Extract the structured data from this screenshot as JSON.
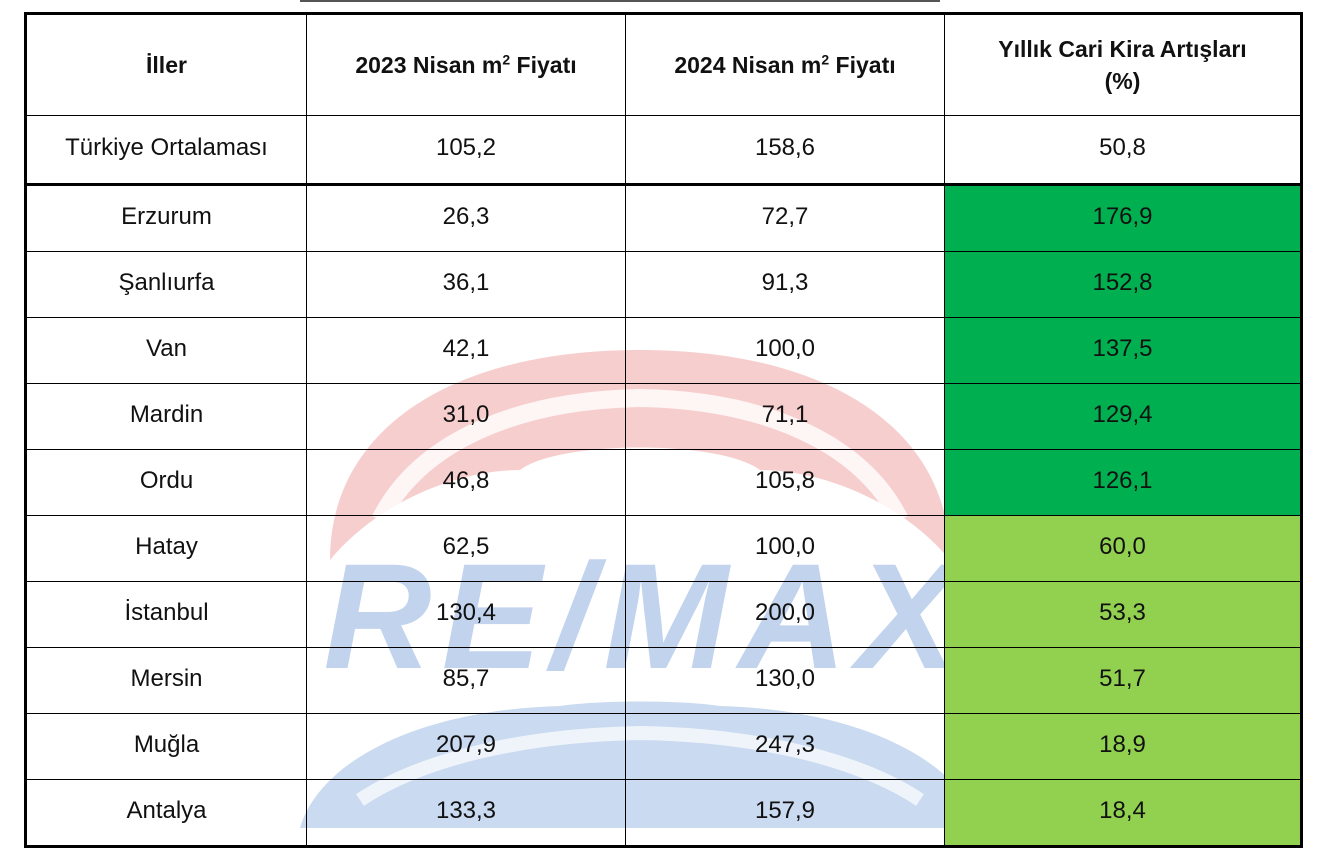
{
  "table": {
    "headers": {
      "city": "İller",
      "price_2023_prefix": "2023 Nisan m",
      "price_2024_prefix": "2024 Nisan m",
      "sup": "2",
      "price_suffix": " Fiyatı",
      "increase_line1": "Yıllık Cari Kira Artışları",
      "increase_line2": "(%)"
    },
    "rows": [
      {
        "city": "Türkiye Ortalaması",
        "p2023": "105,2",
        "p2024": "158,6",
        "inc": "50,8",
        "highlight": "none"
      },
      {
        "city": "Erzurum",
        "p2023": "26,3",
        "p2024": "72,7",
        "inc": "176,9",
        "highlight": "dark"
      },
      {
        "city": "Şanlıurfa",
        "p2023": "36,1",
        "p2024": "91,3",
        "inc": "152,8",
        "highlight": "dark"
      },
      {
        "city": "Van",
        "p2023": "42,1",
        "p2024": "100,0",
        "inc": "137,5",
        "highlight": "dark"
      },
      {
        "city": "Mardin",
        "p2023": "31,0",
        "p2024": "71,1",
        "inc": "129,4",
        "highlight": "dark"
      },
      {
        "city": "Ordu",
        "p2023": "46,8",
        "p2024": "105,8",
        "inc": "126,1",
        "highlight": "dark"
      },
      {
        "city": "Hatay",
        "p2023": "62,5",
        "p2024": "100,0",
        "inc": "60,0",
        "highlight": "light"
      },
      {
        "city": "İstanbul",
        "p2023": "130,4",
        "p2024": "200,0",
        "inc": "53,3",
        "highlight": "light"
      },
      {
        "city": "Mersin",
        "p2023": "85,7",
        "p2024": "130,0",
        "inc": "51,7",
        "highlight": "light"
      },
      {
        "city": "Muğla",
        "p2023": "207,9",
        "p2024": "247,3",
        "inc": "18,9",
        "highlight": "light"
      },
      {
        "city": "Antalya",
        "p2023": "133,3",
        "p2024": "157,9",
        "inc": "18,4",
        "highlight": "light"
      }
    ]
  },
  "colors": {
    "dark_green": "#00b050",
    "light_green": "#92d050"
  },
  "watermark": {
    "text": "RE/MAX",
    "icon": "remax-balloon-logo"
  }
}
